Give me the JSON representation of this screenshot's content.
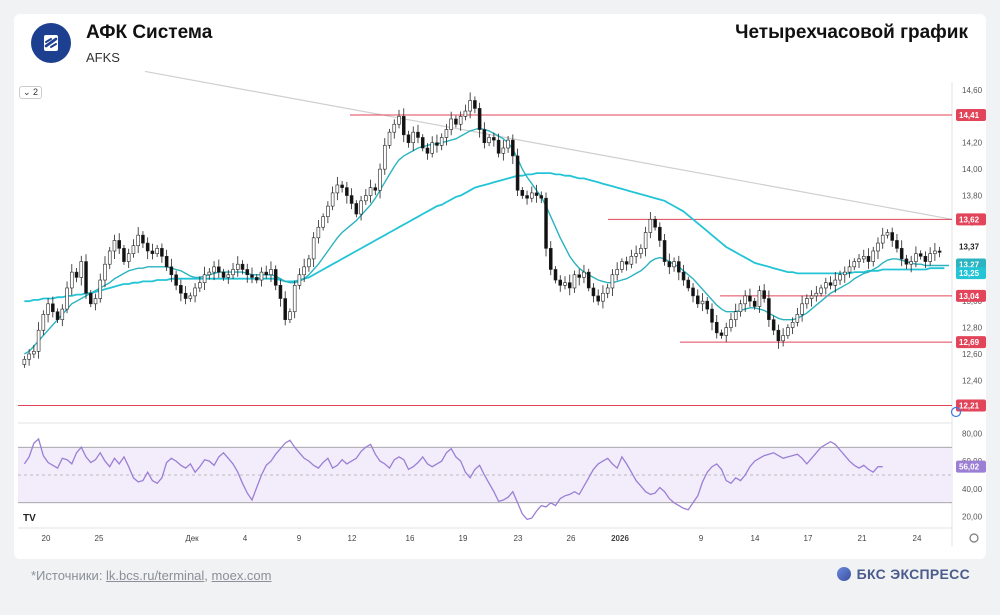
{
  "header": {
    "title": "АФК Система",
    "ticker": "AFKS",
    "chart_type_label": "Четырехчасовой график",
    "interval_badge": "2"
  },
  "footer": {
    "source_prefix": "*Источники: ",
    "source_link_1": "lk.bcs.ru/terminal",
    "source_sep": ", ",
    "source_link_2": "moex.com",
    "brand": "БКС ЭКСПРЕСС"
  },
  "colors": {
    "up": "#555555",
    "down": "#111111",
    "ma_fast": "#2bb3c0",
    "ma_slow": "#23c4d6",
    "level": "#e2455a",
    "trend": "#cfcfcf",
    "rsi": "#9b7fd4",
    "rsi_fill": "#f2ecfb"
  },
  "chart_data": {
    "type": "candlestick",
    "title": "Четырехчасовой график",
    "y_ticks": [
      12.2,
      12.4,
      12.6,
      12.8,
      13.0,
      13.2,
      13.4,
      13.6,
      13.8,
      14.0,
      14.2,
      14.4,
      14.6
    ],
    "ylim": [
      12.1,
      14.66
    ],
    "x_ticks": [
      "20",
      "25",
      "Дек",
      "4",
      "9",
      "12",
      "16",
      "19",
      "23",
      "26",
      "2026",
      "9",
      "14",
      "17",
      "21",
      "24"
    ],
    "levels": [
      {
        "value": 14.41,
        "label": "14,41"
      },
      {
        "value": 13.62,
        "label": "13,62"
      },
      {
        "value": 13.04,
        "label": "13,04"
      },
      {
        "value": 12.69,
        "label": "12,69"
      },
      {
        "value": 12.21,
        "label": "12,21"
      }
    ],
    "last_price": {
      "value": 13.37,
      "label": "13,37"
    },
    "ma_fast_last": {
      "value": 13.27,
      "label": "13,27"
    },
    "ma_slow_last": {
      "value": 13.25,
      "label": "13,25"
    },
    "close": [
      12.56,
      12.6,
      12.62,
      12.78,
      12.9,
      12.98,
      12.92,
      12.86,
      12.94,
      13.1,
      13.22,
      13.18,
      13.3,
      13.06,
      12.98,
      13.02,
      13.16,
      13.28,
      13.38,
      13.46,
      13.4,
      13.3,
      13.36,
      13.42,
      13.5,
      13.44,
      13.38,
      13.36,
      13.4,
      13.34,
      13.26,
      13.2,
      13.12,
      13.06,
      13.02,
      13.04,
      13.1,
      13.14,
      13.2,
      13.22,
      13.26,
      13.22,
      13.18,
      13.2,
      13.24,
      13.28,
      13.24,
      13.2,
      13.18,
      13.16,
      13.22,
      13.2,
      13.24,
      13.12,
      13.02,
      12.86,
      12.92,
      13.12,
      13.2,
      13.26,
      13.32,
      13.48,
      13.56,
      13.64,
      13.72,
      13.82,
      13.88,
      13.86,
      13.8,
      13.74,
      13.66,
      13.76,
      13.8,
      13.86,
      13.84,
      14.0,
      14.18,
      14.28,
      14.34,
      14.4,
      14.26,
      14.2,
      14.28,
      14.24,
      14.16,
      14.12,
      14.2,
      14.18,
      14.24,
      14.3,
      14.38,
      14.34,
      14.4,
      14.44,
      14.52,
      14.46,
      14.3,
      14.2,
      14.24,
      14.22,
      14.12,
      14.16,
      14.22,
      14.1,
      13.84,
      13.8,
      13.78,
      13.82,
      13.8,
      13.78,
      13.4,
      13.24,
      13.16,
      13.12,
      13.14,
      13.1,
      13.2,
      13.18,
      13.22,
      13.1,
      13.04,
      13.0,
      13.06,
      13.1,
      13.2,
      13.24,
      13.3,
      13.28,
      13.34,
      13.36,
      13.4,
      13.52,
      13.62,
      13.56,
      13.46,
      13.3,
      13.26,
      13.3,
      13.22,
      13.16,
      13.1,
      13.04,
      12.98,
      13.0,
      12.94,
      12.84,
      12.76,
      12.74,
      12.8,
      12.86,
      12.92,
      12.98,
      13.04,
      13.0,
      12.96,
      13.08,
      13.02,
      12.86,
      12.78,
      12.7,
      12.74,
      12.8,
      12.84,
      12.9,
      12.98,
      13.02,
      13.04,
      13.06,
      13.1,
      13.14,
      13.12,
      13.16,
      13.2,
      13.22,
      13.26,
      13.3,
      13.32,
      13.34,
      13.3,
      13.38,
      13.44,
      13.5,
      13.52,
      13.46,
      13.4,
      13.32,
      13.28,
      13.3,
      13.36,
      13.34,
      13.3,
      13.36,
      13.38,
      13.37
    ],
    "ma_fast": [
      12.6,
      12.62,
      12.66,
      12.7,
      12.74,
      12.78,
      12.82,
      12.86,
      12.9,
      12.94,
      12.98,
      13.0,
      13.02,
      13.04,
      13.06,
      13.08,
      13.1,
      13.12,
      13.14,
      13.17,
      13.19,
      13.21,
      13.23,
      13.24,
      13.25,
      13.25,
      13.26,
      13.26,
      13.26,
      13.26,
      13.26,
      13.25,
      13.24,
      13.23,
      13.21,
      13.19,
      13.18,
      13.18,
      13.19,
      13.2,
      13.21,
      13.22,
      13.22,
      13.22,
      13.22,
      13.22,
      13.22,
      13.21,
      13.2,
      13.2,
      13.2,
      13.2,
      13.2,
      13.19,
      13.17,
      13.15,
      13.14,
      13.14,
      13.15,
      13.17,
      13.2,
      13.24,
      13.28,
      13.33,
      13.38,
      13.43,
      13.48,
      13.52,
      13.55,
      13.58,
      13.61,
      13.65,
      13.69,
      13.73,
      13.78,
      13.84,
      13.9,
      13.96,
      14.02,
      14.07,
      14.1,
      14.12,
      14.14,
      14.16,
      14.17,
      14.18,
      14.19,
      14.19,
      14.2,
      14.21,
      14.22,
      14.23,
      14.25,
      14.27,
      14.29,
      14.3,
      14.31,
      14.3,
      14.29,
      14.27,
      14.25,
      14.23,
      14.2,
      14.15,
      14.08,
      14.0,
      13.94,
      13.89,
      13.84,
      13.79,
      13.72,
      13.64,
      13.56,
      13.48,
      13.41,
      13.34,
      13.29,
      13.25,
      13.22,
      13.2,
      13.18,
      13.16,
      13.15,
      13.14,
      13.14,
      13.15,
      13.16,
      13.17,
      13.19,
      13.21,
      13.23,
      13.26,
      13.3,
      13.32,
      13.33,
      13.32,
      13.3,
      13.28,
      13.26,
      13.23,
      13.2,
      13.17,
      13.13,
      13.09,
      13.05,
      13.01,
      12.97,
      12.94,
      12.92,
      12.92,
      12.92,
      12.93,
      12.94,
      12.95,
      12.95,
      12.94,
      12.93,
      12.91,
      12.89,
      12.87,
      12.86,
      12.86,
      12.86,
      12.87,
      12.89,
      12.91,
      12.94,
      12.97,
      13.0,
      13.03,
      13.06,
      13.08,
      13.1,
      13.12,
      13.14,
      13.17,
      13.19,
      13.21,
      13.22,
      13.24,
      13.26,
      13.29,
      13.31,
      13.32,
      13.32,
      13.31,
      13.3,
      13.29,
      13.28,
      13.28,
      13.27,
      13.27,
      13.27,
      13.27,
      13.27,
      13.27
    ],
    "ma_slow": [
      13.0,
      13.0,
      13.01,
      13.01,
      13.02,
      13.02,
      13.02,
      13.03,
      13.03,
      13.04,
      13.04,
      13.05,
      13.05,
      13.06,
      13.06,
      13.07,
      13.08,
      13.09,
      13.1,
      13.11,
      13.12,
      13.13,
      13.13,
      13.14,
      13.14,
      13.15,
      13.15,
      13.15,
      13.16,
      13.16,
      13.16,
      13.17,
      13.17,
      13.17,
      13.17,
      13.17,
      13.17,
      13.17,
      13.17,
      13.17,
      13.17,
      13.17,
      13.17,
      13.17,
      13.17,
      13.17,
      13.17,
      13.17,
      13.17,
      13.17,
      13.17,
      13.17,
      13.17,
      13.17,
      13.16,
      13.15,
      13.15,
      13.15,
      13.16,
      13.17,
      13.18,
      13.2,
      13.22,
      13.24,
      13.26,
      13.28,
      13.3,
      13.32,
      13.34,
      13.36,
      13.38,
      13.4,
      13.42,
      13.44,
      13.46,
      13.48,
      13.5,
      13.52,
      13.54,
      13.56,
      13.58,
      13.6,
      13.62,
      13.64,
      13.66,
      13.68,
      13.7,
      13.72,
      13.73,
      13.75,
      13.77,
      13.79,
      13.8,
      13.82,
      13.84,
      13.86,
      13.87,
      13.88,
      13.89,
      13.9,
      13.91,
      13.92,
      13.93,
      13.94,
      13.95,
      13.95,
      13.96,
      13.96,
      13.97,
      13.97,
      13.97,
      13.97,
      13.96,
      13.96,
      13.95,
      13.95,
      13.94,
      13.93,
      13.93,
      13.92,
      13.91,
      13.9,
      13.89,
      13.88,
      13.87,
      13.86,
      13.85,
      13.84,
      13.83,
      13.82,
      13.81,
      13.8,
      13.79,
      13.78,
      13.77,
      13.76,
      13.74,
      13.72,
      13.7,
      13.68,
      13.65,
      13.62,
      13.59,
      13.56,
      13.53,
      13.5,
      13.47,
      13.44,
      13.41,
      13.39,
      13.37,
      13.35,
      13.33,
      13.31,
      13.29,
      13.28,
      13.27,
      13.26,
      13.25,
      13.24,
      13.23,
      13.22,
      13.22,
      13.21,
      13.21,
      13.21,
      13.21,
      13.21,
      13.21,
      13.21,
      13.21,
      13.21,
      13.21,
      13.21,
      13.21,
      13.22,
      13.22,
      13.22,
      13.23,
      13.23,
      13.23,
      13.24,
      13.24,
      13.24,
      13.24,
      13.24,
      13.24,
      13.24,
      13.24,
      13.24,
      13.24,
      13.25,
      13.25,
      13.25,
      13.25
    ],
    "rsi": {
      "y_ticks": [
        20.0,
        40.0,
        60.0,
        80.0
      ],
      "ylim": [
        14,
        86
      ],
      "band": [
        30,
        70
      ],
      "mid": 50,
      "last": {
        "value": 56.02,
        "label": "56,02"
      },
      "values": [
        58,
        63,
        73,
        76,
        64,
        59,
        57,
        55,
        62,
        61,
        58,
        66,
        70,
        63,
        59,
        61,
        66,
        60,
        56,
        62,
        58,
        63,
        56,
        48,
        45,
        46,
        52,
        46,
        44,
        48,
        59,
        62,
        60,
        57,
        55,
        58,
        52,
        56,
        61,
        60,
        57,
        63,
        66,
        62,
        58,
        52,
        44,
        37,
        32,
        41,
        50,
        57,
        60,
        65,
        69,
        73,
        75,
        70,
        66,
        62,
        60,
        57,
        55,
        59,
        62,
        55,
        57,
        61,
        58,
        60,
        62,
        67,
        70,
        72,
        65,
        60,
        58,
        55,
        61,
        63,
        61,
        54,
        56,
        59,
        63,
        58,
        56,
        58,
        60,
        66,
        69,
        63,
        60,
        52,
        48,
        54,
        57,
        50,
        44,
        38,
        31,
        32,
        34,
        38,
        30,
        22,
        18,
        19,
        24,
        28,
        27,
        30,
        28,
        33,
        35,
        36,
        38,
        36,
        42,
        48,
        54,
        58,
        60,
        62,
        58,
        55,
        63,
        58,
        52,
        46,
        42,
        38,
        36,
        37,
        41,
        38,
        33,
        30,
        28,
        26,
        25,
        30,
        35,
        45,
        52,
        56,
        58,
        54,
        46,
        44,
        48,
        46,
        50,
        56,
        60,
        62,
        64,
        65,
        66,
        64,
        62,
        63,
        64,
        65,
        62,
        58,
        62,
        66,
        70,
        72,
        74,
        72,
        68,
        64,
        60,
        57,
        55,
        57,
        54,
        52,
        56,
        56
      ]
    }
  }
}
